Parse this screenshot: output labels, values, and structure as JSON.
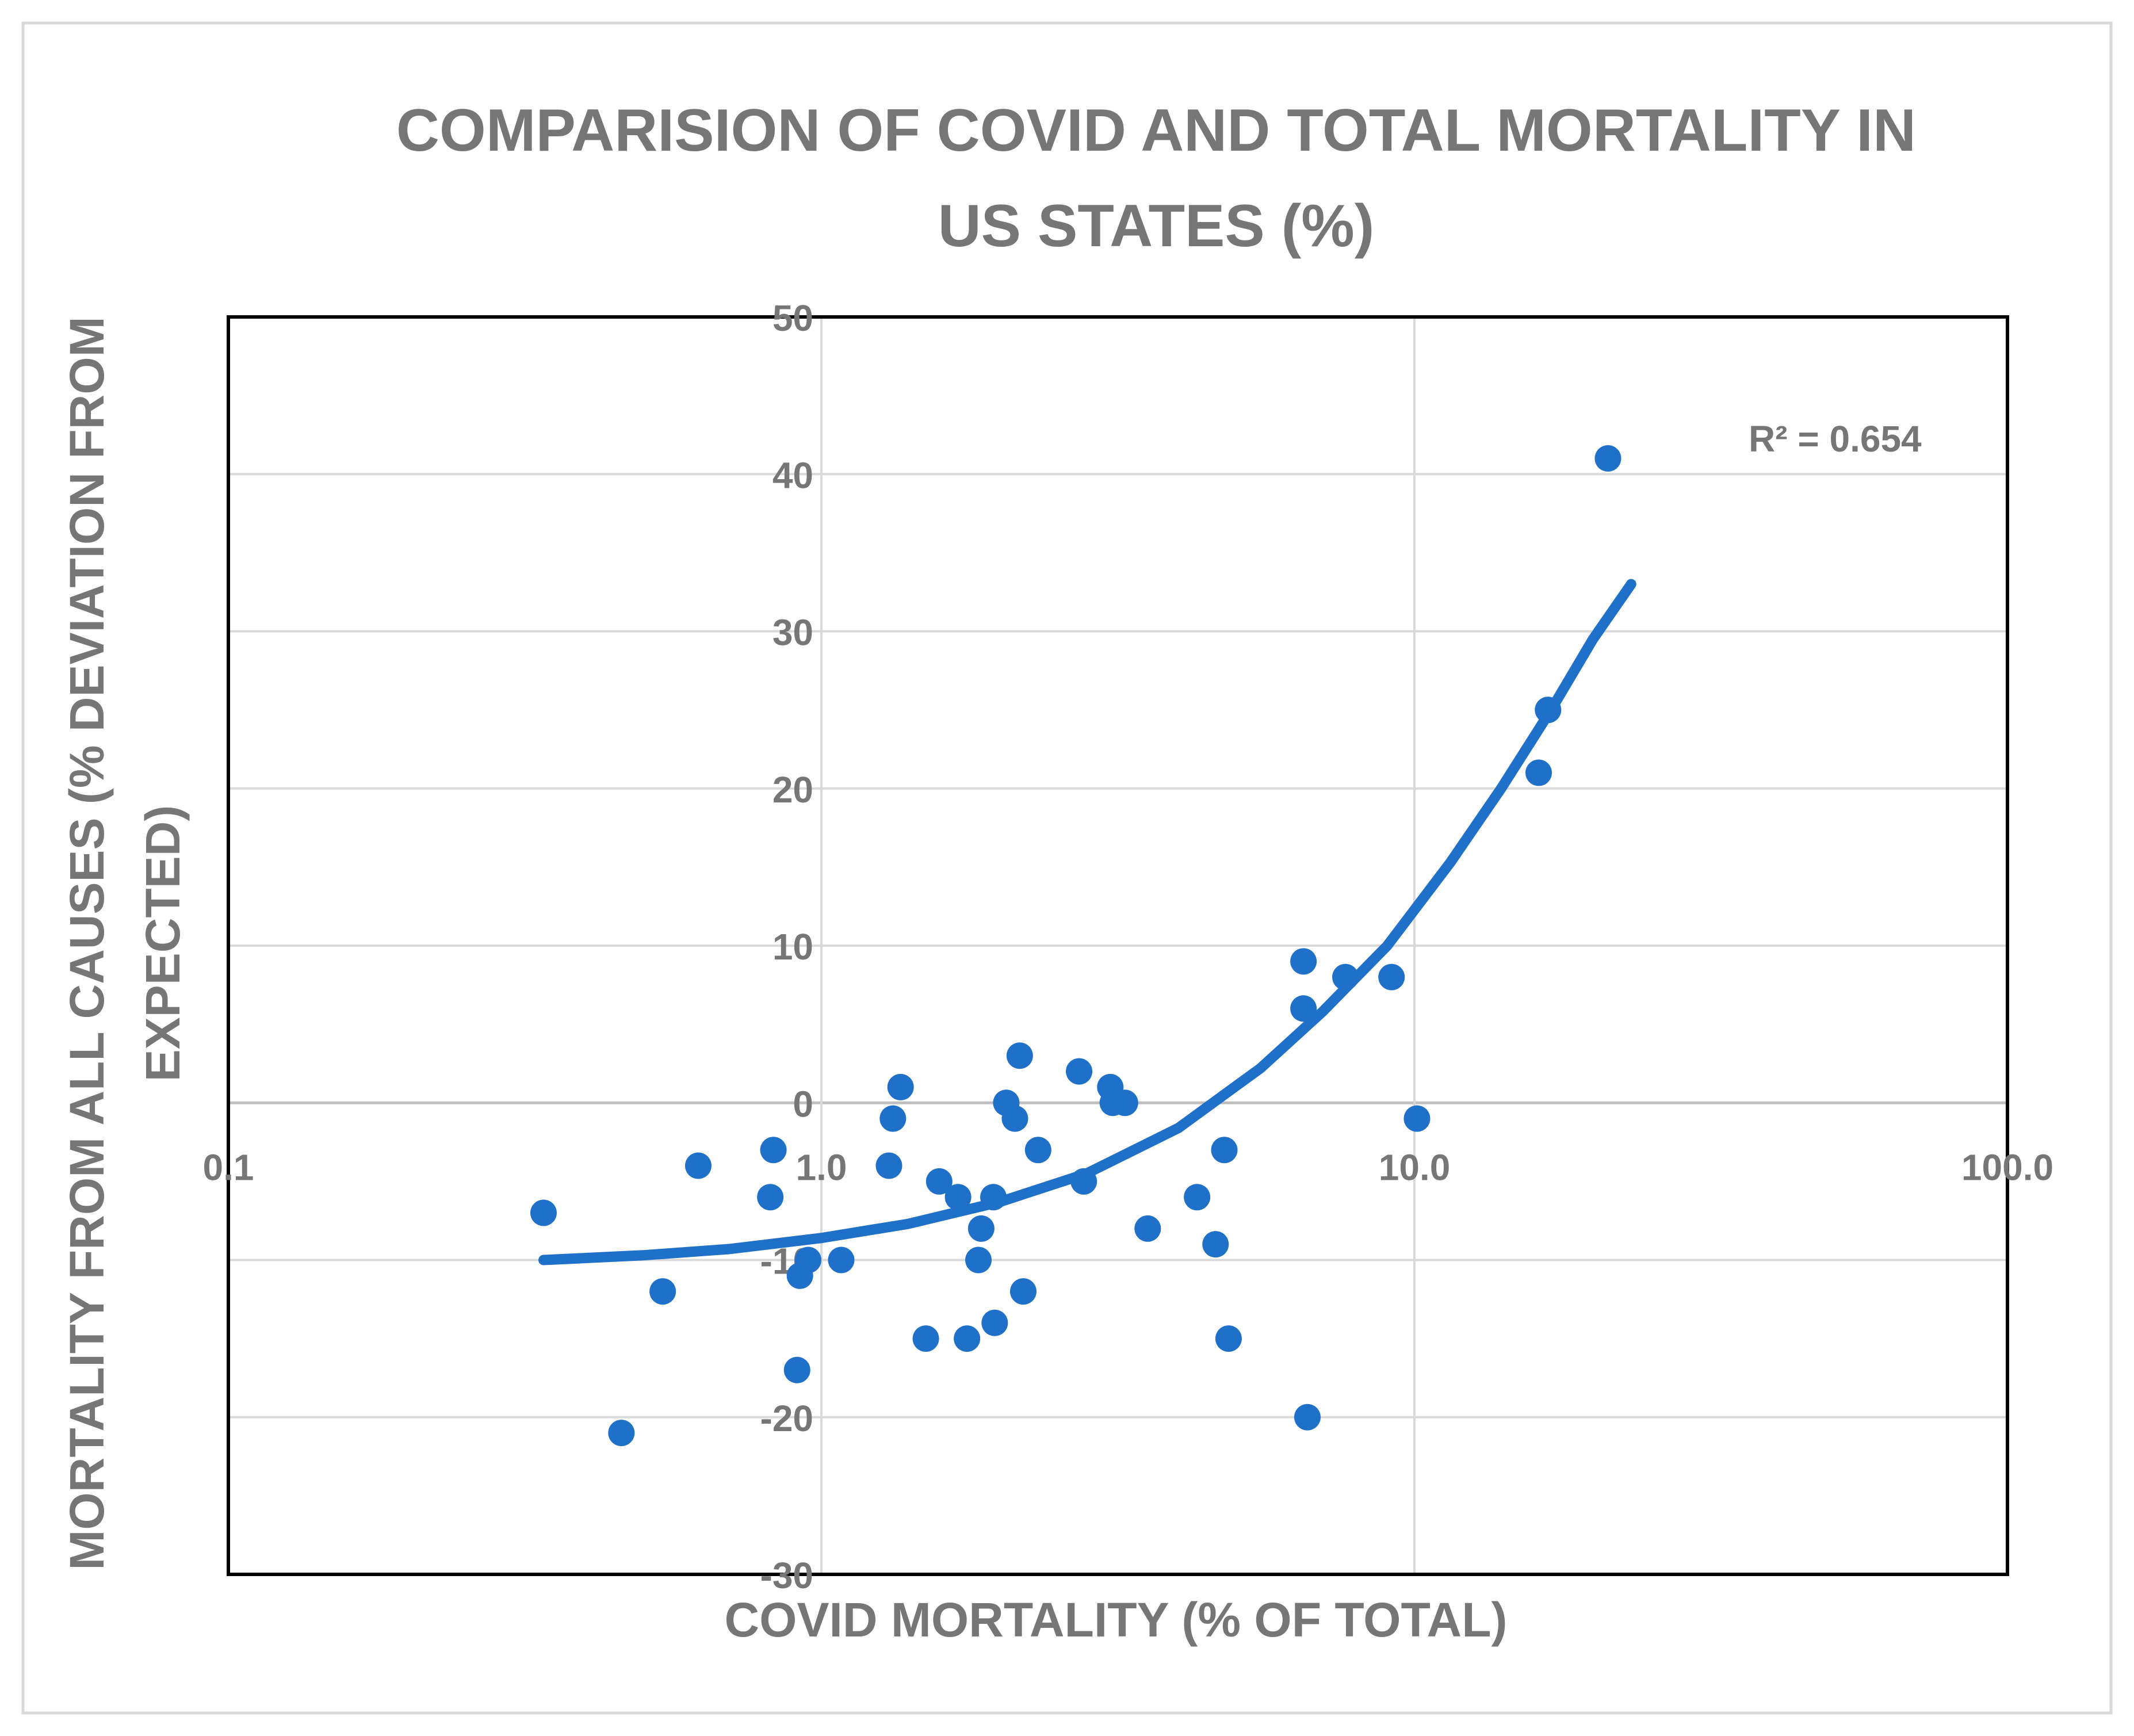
{
  "chart_data": {
    "type": "scatter",
    "title": "COMPARISION OF COVID AND TOTAL MORTALITY IN US STATES (%)",
    "title_lines": [
      "COMPARISION OF COVID AND TOTAL MORTALITY IN",
      "US STATES (%)"
    ],
    "xlabel": "COVID MORTALITY (% OF TOTAL)",
    "ylabel": "MORTALITY FROM ALL CAUSES (% DEVIATION FROM EXPECTED)",
    "ylabel_lines": [
      "MORTALITY FROM ALL CAUSES (% DEVIATION FROM",
      "EXPECTED)"
    ],
    "x_scale": "log",
    "xlim": [
      0.1,
      100
    ],
    "ylim": [
      -30,
      50
    ],
    "x_ticks": [
      0.1,
      1,
      10,
      100
    ],
    "x_tick_labels": [
      "0.1",
      "1.0",
      "10.0",
      "100.0"
    ],
    "y_ticks": [
      -30,
      -20,
      -10,
      0,
      10,
      20,
      30,
      40,
      50
    ],
    "y_tick_labels": [
      "-30",
      "-20",
      "-10",
      "0",
      "10",
      "20",
      "30",
      "40",
      "50"
    ],
    "grid": true,
    "marker_color": "#1f70c8",
    "trendline": {
      "type": "exponential",
      "label": "R² = 0.654",
      "x_range": [
        0.34,
        23.2
      ],
      "points": [
        [
          0.34,
          -10.0
        ],
        [
          0.5,
          -9.7
        ],
        [
          0.7,
          -9.3
        ],
        [
          1.0,
          -8.6
        ],
        [
          1.4,
          -7.7
        ],
        [
          2.0,
          -6.3
        ],
        [
          2.8,
          -4.5
        ],
        [
          4.0,
          -1.6
        ],
        [
          5.5,
          2.2
        ],
        [
          7.0,
          5.8
        ],
        [
          9.0,
          10.0
        ],
        [
          11.5,
          15.3
        ],
        [
          14.0,
          20.0
        ],
        [
          17.0,
          25.0
        ],
        [
          20.0,
          29.5
        ],
        [
          23.2,
          33.0
        ]
      ]
    },
    "points": [
      {
        "x": 0.34,
        "y": -7
      },
      {
        "x": 0.46,
        "y": -21
      },
      {
        "x": 0.54,
        "y": -12
      },
      {
        "x": 0.62,
        "y": -4
      },
      {
        "x": 0.82,
        "y": -6
      },
      {
        "x": 0.83,
        "y": -3
      },
      {
        "x": 0.91,
        "y": -17
      },
      {
        "x": 0.92,
        "y": -11
      },
      {
        "x": 0.95,
        "y": -10
      },
      {
        "x": 1.08,
        "y": -10
      },
      {
        "x": 1.3,
        "y": -4
      },
      {
        "x": 1.32,
        "y": -1
      },
      {
        "x": 1.36,
        "y": 1
      },
      {
        "x": 1.5,
        "y": -15
      },
      {
        "x": 1.58,
        "y": -5
      },
      {
        "x": 1.7,
        "y": -6
      },
      {
        "x": 1.76,
        "y": -15
      },
      {
        "x": 1.84,
        "y": -10
      },
      {
        "x": 1.86,
        "y": -8
      },
      {
        "x": 1.95,
        "y": -6
      },
      {
        "x": 1.96,
        "y": -14
      },
      {
        "x": 2.05,
        "y": 0
      },
      {
        "x": 2.12,
        "y": -1
      },
      {
        "x": 2.16,
        "y": 3
      },
      {
        "x": 2.19,
        "y": -12
      },
      {
        "x": 2.32,
        "y": -3
      },
      {
        "x": 2.72,
        "y": 2
      },
      {
        "x": 2.77,
        "y": -5
      },
      {
        "x": 3.07,
        "y": 1
      },
      {
        "x": 3.1,
        "y": 0
      },
      {
        "x": 3.25,
        "y": 0
      },
      {
        "x": 3.55,
        "y": -8
      },
      {
        "x": 4.3,
        "y": -6
      },
      {
        "x": 4.62,
        "y": -9
      },
      {
        "x": 4.78,
        "y": -3
      },
      {
        "x": 4.86,
        "y": -15
      },
      {
        "x": 6.5,
        "y": 9
      },
      {
        "x": 6.5,
        "y": 6
      },
      {
        "x": 6.6,
        "y": -20
      },
      {
        "x": 7.65,
        "y": 8
      },
      {
        "x": 9.15,
        "y": 8
      },
      {
        "x": 10.1,
        "y": -1
      },
      {
        "x": 16.2,
        "y": 21
      },
      {
        "x": 16.8,
        "y": 25
      },
      {
        "x": 21.2,
        "y": 41
      }
    ]
  }
}
